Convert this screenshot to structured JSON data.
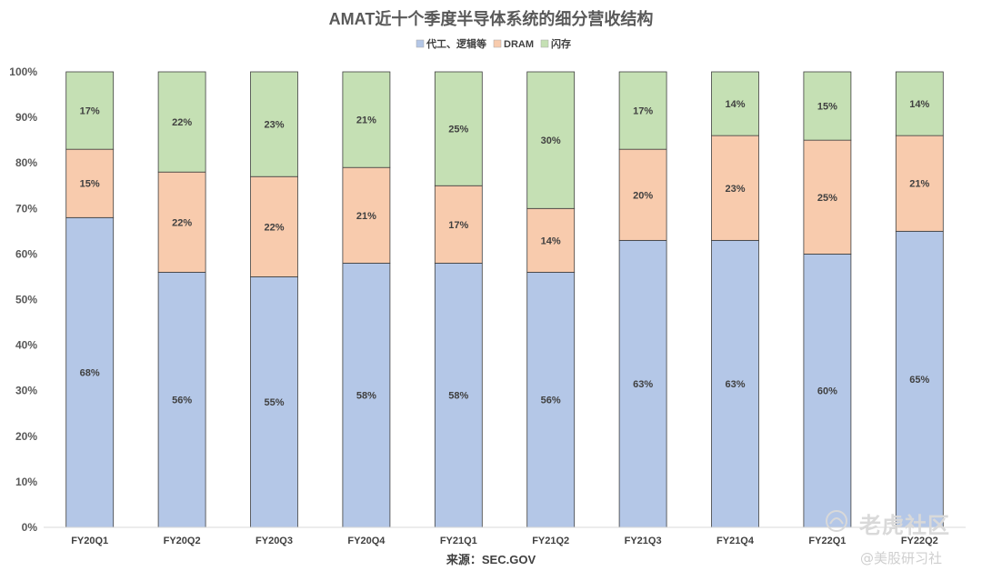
{
  "chart_data": {
    "type": "bar",
    "stacked": "percent",
    "title": "AMAT近十个季度半导体系统的细分营收结构",
    "categories": [
      "FY20Q1",
      "FY20Q2",
      "FY20Q3",
      "FY20Q4",
      "FY21Q1",
      "FY21Q2",
      "FY21Q3",
      "FY21Q4",
      "FY22Q1",
      "FY22Q2"
    ],
    "series": [
      {
        "name": "代工、逻辑等",
        "color": "#b4c7e7",
        "values": [
          68,
          56,
          55,
          58,
          58,
          56,
          63,
          63,
          60,
          65
        ]
      },
      {
        "name": "DRAM",
        "color": "#f8cbad",
        "values": [
          15,
          22,
          22,
          21,
          17,
          14,
          20,
          23,
          25,
          21
        ]
      },
      {
        "name": "闪存",
        "color": "#c5e0b4",
        "values": [
          17,
          22,
          23,
          21,
          25,
          30,
          17,
          14,
          15,
          14
        ]
      }
    ],
    "ylim": [
      0,
      100
    ],
    "yticks": [
      0,
      10,
      20,
      30,
      40,
      50,
      60,
      70,
      80,
      90,
      100
    ],
    "ytick_labels": [
      "0%",
      "10%",
      "20%",
      "30%",
      "40%",
      "50%",
      "60%",
      "70%",
      "80%",
      "90%",
      "100%"
    ],
    "legend_position": "top",
    "grid": false,
    "source_note": "来源：SEC.GOV"
  },
  "watermark": {
    "brand": "老虎社区",
    "handle": "@美股研习社"
  }
}
